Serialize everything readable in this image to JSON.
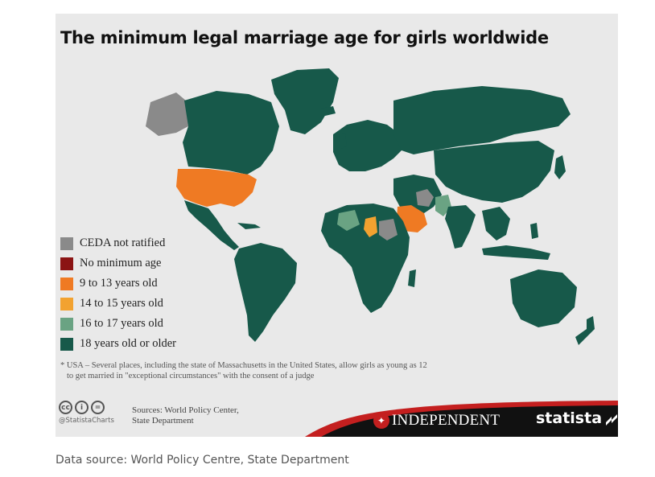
{
  "map": {
    "title": "The minimum legal marriage age for girls worldwide",
    "legend": [
      {
        "label": "CEDA not ratified",
        "color": "#8a8a8a"
      },
      {
        "label": "No minimum age",
        "color": "#8b1414"
      },
      {
        "label": "9 to 13 years old",
        "color": "#ef7a23"
      },
      {
        "label": "14 to 15 years old",
        "color": "#f2a230"
      },
      {
        "label": "16 to 17 years old",
        "color": "#6aa383"
      },
      {
        "label": "18 years old or older",
        "color": "#17594a"
      }
    ],
    "note_line1": "* USA – Several places, including the state of Massachusetts in the United States, allow girls as young as 12",
    "note_line2": "to get married in \"exceptional circumstances\" with the consent of a judge",
    "cc_handle": "@StatistaCharts",
    "sources_line1": "Sources: World Policy Center,",
    "sources_line2": "State Department",
    "publisher": "INDEPENDENT",
    "brand": "statista"
  },
  "caption": "Data source: World Policy Centre, State Department"
}
